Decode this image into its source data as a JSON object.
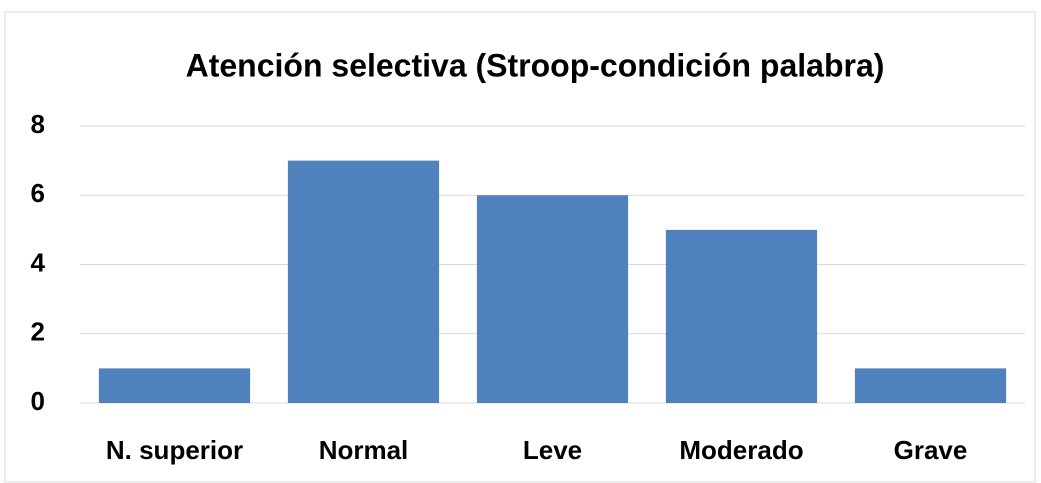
{
  "chart_data": {
    "type": "bar",
    "title": "Atención selectiva (Stroop-condición palabra)",
    "categories": [
      "N. superior",
      "Normal",
      "Leve",
      "Moderado",
      "Grave"
    ],
    "values": [
      1,
      7,
      6,
      5,
      1
    ],
    "color": "#4f81bd",
    "ylim": [
      0,
      8
    ],
    "yticks": [
      0,
      2,
      4,
      6,
      8
    ],
    "grid": true
  }
}
